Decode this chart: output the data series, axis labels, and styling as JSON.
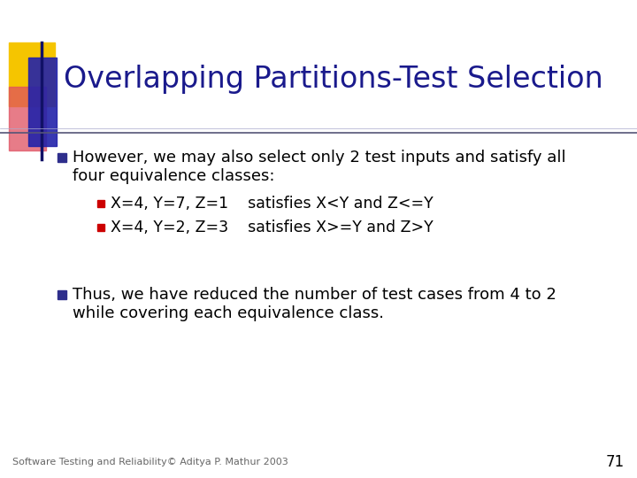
{
  "title": "Overlapping Partitions-Test Selection",
  "title_color": "#1a1a8c",
  "title_fontsize": 24,
  "bg_color": "#ffffff",
  "bullet1_line1": "However, we may also select only 2 test inputs and satisfy all",
  "bullet1_line2": "four equivalence classes:",
  "sub_bullet1": "X=4, Y=7, Z=1    satisfies X<Y and Z<=Y",
  "sub_bullet2": "X=4, Y=2, Z=3    satisfies X>=Y and Z>Y",
  "bullet2_line1": "Thus, we have reduced the number of test cases from 4 to 2",
  "bullet2_line2": "while covering each equivalence class.",
  "footer": "Software Testing and Reliability© Aditya P. Mathur 2003",
  "page_number": "71",
  "bullet_color": "#2e2e8c",
  "sub_bullet_color": "#cc0000",
  "text_color": "#000000",
  "footer_color": "#666666",
  "line_color": "#333399",
  "accent_yellow": "#f5c500",
  "accent_red": "#e05060",
  "accent_blue": "#2222aa",
  "body_fontsize": 13,
  "sub_fontsize": 12.5,
  "footer_fontsize": 8
}
